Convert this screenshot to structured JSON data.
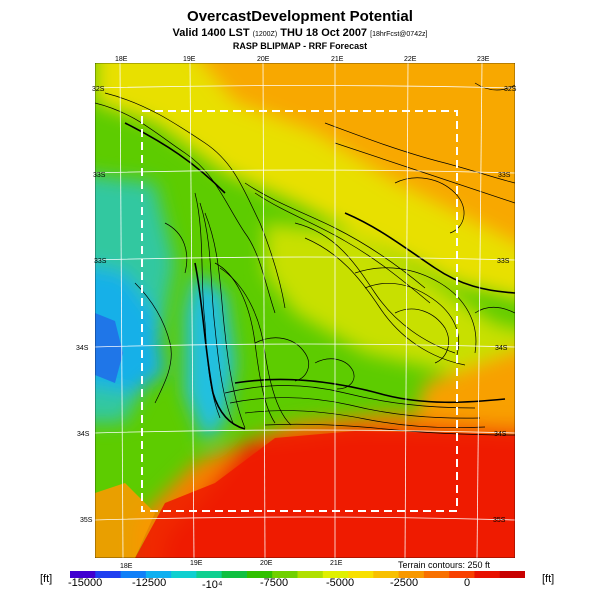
{
  "header": {
    "title": "OvercastDevelopment Potential",
    "valid_line": "Valid 1400 LST",
    "valid_small": "(1200Z)",
    "valid_day": "THU 18 Oct 2007",
    "forecast_tag": "[18hrFcst@0742z]",
    "subtitle": "RASP BLIPMAP - RRF Forecast"
  },
  "map": {
    "top_lon_labels": [
      "18E",
      "19E",
      "20E",
      "21E",
      "22E",
      "23E"
    ],
    "bottom_lon_labels": [
      "18E",
      "19E",
      "20E",
      "21E"
    ],
    "left_lat_labels": [
      "32S",
      "33S",
      "33S",
      "34S",
      "34S",
      "35S"
    ],
    "right_lat_labels": [
      "32S",
      "33S",
      "33S",
      "34S",
      "34S",
      "35S"
    ],
    "colors": {
      "red": "#ee1a00",
      "orange": "#f89a00",
      "yellow": "#f0e000",
      "lime": "#b0dc00",
      "green": "#3cc000",
      "teal": "#20c8a0",
      "cyan": "#10b8e0",
      "blue": "#2070e8"
    }
  },
  "legend": {
    "terrain_note": "Terrain contours: 250 ft",
    "unit_left": "[ft]",
    "unit_right": "[ft]",
    "tick_labels": [
      "-15000",
      "-12500",
      "-10⁴",
      "-7500",
      "-5000",
      "-2500",
      "0"
    ],
    "swatches": [
      "#4000d0",
      "#2040f0",
      "#1080f8",
      "#10b0f0",
      "#10d0d0",
      "#10d090",
      "#10c040",
      "#30c000",
      "#70d000",
      "#b0e000",
      "#e0f000",
      "#f8e000",
      "#f8c000",
      "#f89800",
      "#f87000",
      "#f84000",
      "#e81000",
      "#c80000"
    ]
  }
}
